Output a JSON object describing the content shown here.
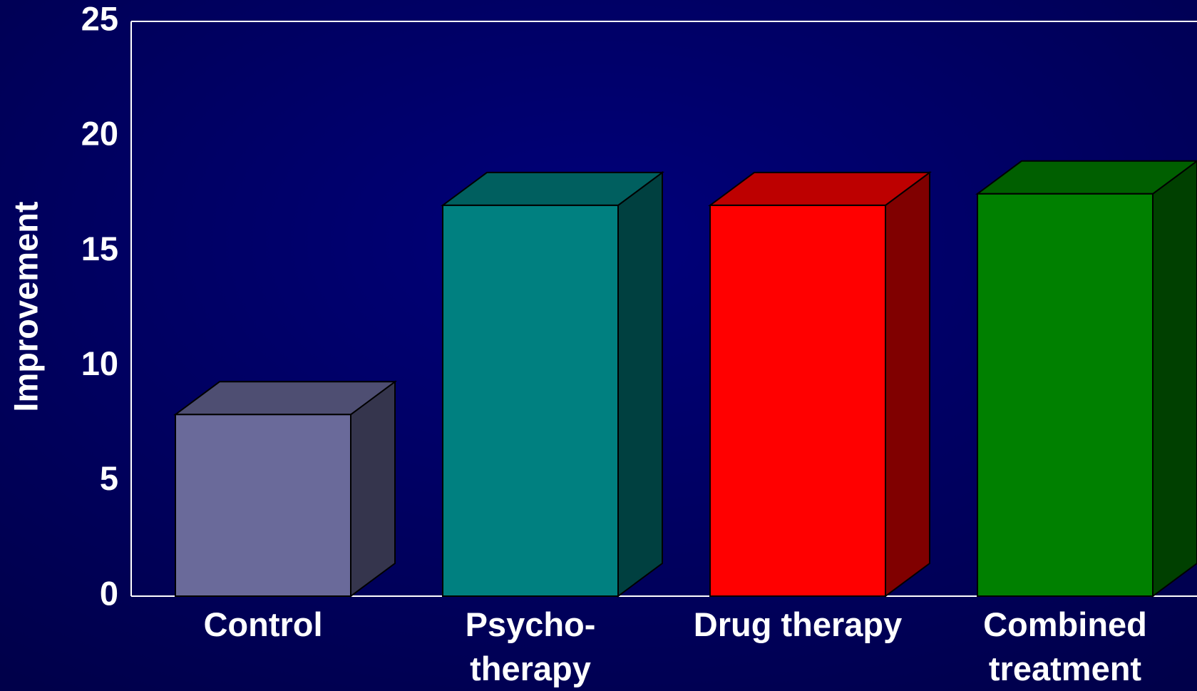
{
  "chart_data": {
    "type": "bar3d",
    "y_label": "Improvement",
    "categories": [
      "Control",
      "Psycho-\ntherapy",
      "Drug therapy",
      "Combined\ntreatment"
    ],
    "values": [
      7.9,
      17,
      17,
      17.5
    ],
    "colors": [
      "#6a6a9a",
      "#008080",
      "#ff0000",
      "#008000"
    ],
    "ylim": [
      0,
      25
    ],
    "yticks": [
      0,
      5,
      10,
      15,
      20,
      25
    ]
  }
}
